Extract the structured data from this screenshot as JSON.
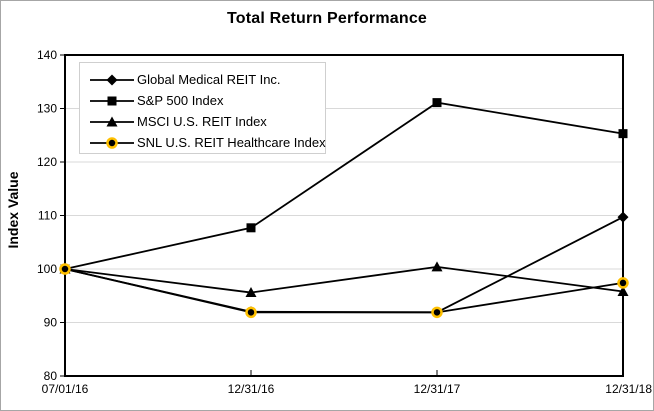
{
  "chart_data": {
    "type": "line",
    "title": "Total Return Performance",
    "ylabel": "Index Value",
    "xlabel": "",
    "ylim": [
      80,
      140
    ],
    "yticks": [
      80,
      90,
      100,
      110,
      120,
      130,
      140
    ],
    "grid": "horizontal",
    "legend_position": "top-left-inside",
    "categories": [
      "07/01/16",
      "12/31/16",
      "12/31/17",
      "12/31/18"
    ],
    "series": [
      {
        "name": "Global Medical REIT Inc.",
        "marker": "diamond",
        "values": [
          100,
          92.0,
          91.9,
          109.7
        ]
      },
      {
        "name": "S&P 500 Index",
        "marker": "square",
        "values": [
          100,
          107.7,
          131.1,
          125.3
        ]
      },
      {
        "name": "MSCI U.S. REIT Index",
        "marker": "triangle",
        "values": [
          100,
          95.6,
          100.4,
          95.8
        ]
      },
      {
        "name": "SNL U.S. REIT Healthcare Index",
        "marker": "circle",
        "values": [
          100,
          91.9,
          91.9,
          97.4
        ]
      }
    ],
    "colors": {
      "line": "#000000",
      "marker_fill": "#000000",
      "marker_ring": "#FFC000",
      "grid": "#d9d9d9",
      "frame": "#000000",
      "background": "#ffffff",
      "legend_border": "#cfcfcf"
    }
  }
}
